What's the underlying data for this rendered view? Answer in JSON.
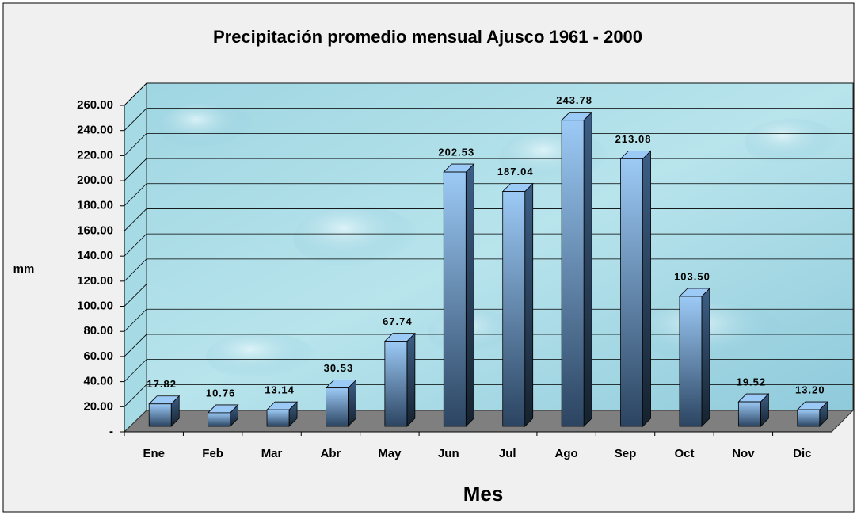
{
  "chart_data": {
    "type": "bar3d",
    "title": "Precipitación promedio mensual Ajusco 1961 - 2000",
    "y_label": "mm",
    "x_label": "Mes",
    "categories": [
      "Ene",
      "Feb",
      "Mar",
      "Abr",
      "May",
      "Jun",
      "Jul",
      "Ago",
      "Sep",
      "Oct",
      "Nov",
      "Dic"
    ],
    "values": [
      17.82,
      10.76,
      13.14,
      30.53,
      67.74,
      202.53,
      187.04,
      243.78,
      213.08,
      103.5,
      19.52,
      13.2
    ],
    "value_labels": [
      "17.82",
      "10.76",
      "13.14",
      "30.53",
      "67.74",
      "202.53",
      "187.04",
      "243.78",
      "213.08",
      "103.50",
      "19.52",
      "13.20"
    ],
    "color": "#9ccaf6",
    "ylim": [
      0,
      260
    ],
    "yticks": [
      {
        "value": 0,
        "label": "-"
      },
      {
        "value": 20,
        "label": "20.00"
      },
      {
        "value": 40,
        "label": "40.00"
      },
      {
        "value": 60,
        "label": "60.00"
      },
      {
        "value": 80,
        "label": "80.00"
      },
      {
        "value": 100,
        "label": "100.00"
      },
      {
        "value": 120,
        "label": "120.00"
      },
      {
        "value": 140,
        "label": "140.00"
      },
      {
        "value": 160,
        "label": "160.00"
      },
      {
        "value": 180,
        "label": "180.00"
      },
      {
        "value": 200,
        "label": "200.00"
      },
      {
        "value": 220,
        "label": "220.00"
      },
      {
        "value": 240,
        "label": "240.00"
      },
      {
        "value": 260,
        "label": "260.00"
      }
    ],
    "grid": true
  }
}
